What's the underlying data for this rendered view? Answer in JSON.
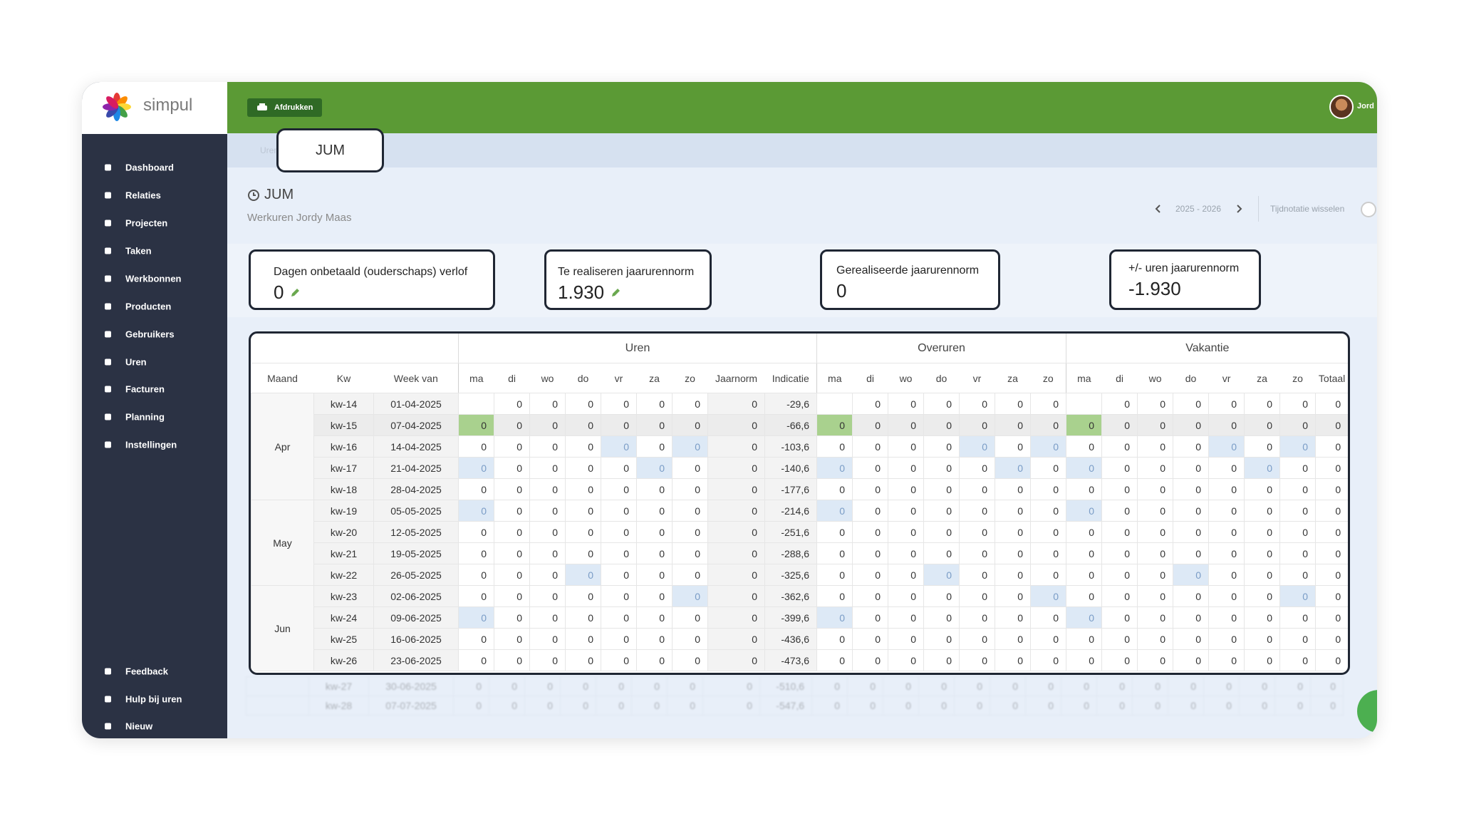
{
  "sidebar": {
    "brand": "simpul",
    "menu": [
      "Dashboard",
      "Relaties",
      "Projecten",
      "Taken",
      "Werkbonnen",
      "Producten",
      "Gebruikers",
      "Uren",
      "Facturen",
      "Planning",
      "Instellingen"
    ],
    "footer_menu": [
      "Feedback",
      "Hulp bij uren",
      "Nieuw"
    ]
  },
  "topbar": {
    "print_button": "Afdrukken",
    "user": "Jord"
  },
  "breadcrumb": {
    "crumb": "Uren",
    "highlight": "JUM"
  },
  "page": {
    "title": "JUM",
    "subtitle": "Werkuren Jordy Maas",
    "period": "2025 - 2026",
    "toggle": "Tijdnotatie wisselen"
  },
  "stats": [
    {
      "label": "Dagen onbetaald (ouderschaps) verlof",
      "value": 0
    },
    {
      "label": "Te realiseren jaarurennorm",
      "value": "1.930"
    },
    {
      "label": "Gerealiseerde jaarurennorm",
      "value": 0
    },
    {
      "label": "+/- uren jaarurennorm",
      "value": "-1.930"
    }
  ],
  "table": {
    "groups": [
      "Uren",
      "Overuren",
      "Vakantie"
    ],
    "columns": {
      "maand": "Maand",
      "kw": "Kw",
      "week": "Week van",
      "days": [
        "ma",
        "di",
        "wo",
        "do",
        "vr",
        "za",
        "zo"
      ],
      "jaarnorm": "Jaarnorm",
      "indicatie": "Indicatie",
      "totaal": "Totaal"
    },
    "months": [
      {
        "name": "Apr",
        "weeks": [
          {
            "kw": "kw-14",
            "week": "01-04-2025",
            "uren": [
              null,
              0,
              0,
              0,
              0,
              0,
              0
            ],
            "jaarnorm": 0,
            "indicatie": "-29,6",
            "overuren": [
              null,
              0,
              0,
              0,
              0,
              0,
              0
            ],
            "vakantie": [
              null,
              0,
              0,
              0,
              0,
              0,
              0
            ],
            "totaal": 0
          },
          {
            "kw": "kw-15",
            "week": "07-04-2025",
            "uren": [
              0,
              0,
              0,
              0,
              0,
              0,
              0
            ],
            "jaarnorm": 0,
            "indicatie": "-66,6",
            "overuren": [
              0,
              0,
              0,
              0,
              0,
              0,
              0
            ],
            "vakantie": [
              0,
              0,
              0,
              0,
              0,
              0,
              0
            ],
            "totaal": 0
          },
          {
            "kw": "kw-16",
            "week": "14-04-2025",
            "uren": [
              0,
              0,
              0,
              0,
              0,
              0,
              0
            ],
            "jaarnorm": 0,
            "indicatie": "-103,6",
            "overuren": [
              0,
              0,
              0,
              0,
              0,
              0,
              0
            ],
            "vakantie": [
              0,
              0,
              0,
              0,
              0,
              0,
              0
            ],
            "totaal": 0
          },
          {
            "kw": "kw-17",
            "week": "21-04-2025",
            "uren": [
              0,
              0,
              0,
              0,
              0,
              0,
              0
            ],
            "jaarnorm": 0,
            "indicatie": "-140,6",
            "overuren": [
              0,
              0,
              0,
              0,
              0,
              0,
              0
            ],
            "vakantie": [
              0,
              0,
              0,
              0,
              0,
              0,
              0
            ],
            "totaal": 0
          },
          {
            "kw": "kw-18",
            "week": "28-04-2025",
            "uren": [
              0,
              0,
              0,
              0,
              0,
              0,
              0
            ],
            "jaarnorm": 0,
            "indicatie": "-177,6",
            "overuren": [
              0,
              0,
              0,
              0,
              0,
              0,
              0
            ],
            "vakantie": [
              0,
              0,
              0,
              0,
              0,
              0,
              0
            ],
            "totaal": 0
          }
        ]
      },
      {
        "name": "May",
        "weeks": [
          {
            "kw": "kw-19",
            "week": "05-05-2025",
            "uren": [
              0,
              0,
              0,
              0,
              0,
              0,
              0
            ],
            "jaarnorm": 0,
            "indicatie": "-214,6",
            "overuren": [
              0,
              0,
              0,
              0,
              0,
              0,
              0
            ],
            "vakantie": [
              0,
              0,
              0,
              0,
              0,
              0,
              0
            ],
            "totaal": 0
          },
          {
            "kw": "kw-20",
            "week": "12-05-2025",
            "uren": [
              0,
              0,
              0,
              0,
              0,
              0,
              0
            ],
            "jaarnorm": 0,
            "indicatie": "-251,6",
            "overuren": [
              0,
              0,
              0,
              0,
              0,
              0,
              0
            ],
            "vakantie": [
              0,
              0,
              0,
              0,
              0,
              0,
              0
            ],
            "totaal": 0
          },
          {
            "kw": "kw-21",
            "week": "19-05-2025",
            "uren": [
              0,
              0,
              0,
              0,
              0,
              0,
              0
            ],
            "jaarnorm": 0,
            "indicatie": "-288,6",
            "overuren": [
              0,
              0,
              0,
              0,
              0,
              0,
              0
            ],
            "vakantie": [
              0,
              0,
              0,
              0,
              0,
              0,
              0
            ],
            "totaal": 0
          },
          {
            "kw": "kw-22",
            "week": "26-05-2025",
            "uren": [
              0,
              0,
              0,
              0,
              0,
              0,
              0
            ],
            "jaarnorm": 0,
            "indicatie": "-325,6",
            "overuren": [
              0,
              0,
              0,
              0,
              0,
              0,
              0
            ],
            "vakantie": [
              0,
              0,
              0,
              0,
              0,
              0,
              0
            ],
            "totaal": 0
          }
        ]
      },
      {
        "name": "Jun",
        "weeks": [
          {
            "kw": "kw-23",
            "week": "02-06-2025",
            "uren": [
              0,
              0,
              0,
              0,
              0,
              0,
              0
            ],
            "jaarnorm": 0,
            "indicatie": "-362,6",
            "overuren": [
              0,
              0,
              0,
              0,
              0,
              0,
              0
            ],
            "vakantie": [
              0,
              0,
              0,
              0,
              0,
              0,
              0
            ],
            "totaal": 0
          },
          {
            "kw": "kw-24",
            "week": "09-06-2025",
            "uren": [
              0,
              0,
              0,
              0,
              0,
              0,
              0
            ],
            "jaarnorm": 0,
            "indicatie": "-399,6",
            "overuren": [
              0,
              0,
              0,
              0,
              0,
              0,
              0
            ],
            "vakantie": [
              0,
              0,
              0,
              0,
              0,
              0,
              0
            ],
            "totaal": 0
          },
          {
            "kw": "kw-25",
            "week": "16-06-2025",
            "uren": [
              0,
              0,
              0,
              0,
              0,
              0,
              0
            ],
            "jaarnorm": 0,
            "indicatie": "-436,6",
            "overuren": [
              0,
              0,
              0,
              0,
              0,
              0,
              0
            ],
            "vakantie": [
              0,
              0,
              0,
              0,
              0,
              0,
              0
            ],
            "totaal": 0
          },
          {
            "kw": "kw-26",
            "week": "23-06-2025",
            "uren": [
              0,
              0,
              0,
              0,
              0,
              0,
              0
            ],
            "jaarnorm": 0,
            "indicatie": "-473,6",
            "overuren": [
              0,
              0,
              0,
              0,
              0,
              0,
              0
            ],
            "vakantie": [
              0,
              0,
              0,
              0,
              0,
              0,
              0
            ],
            "totaal": 0
          }
        ]
      }
    ],
    "background_rows": [
      {
        "kw": "kw-27",
        "week": "30-06-2025",
        "uren": [
          0,
          0,
          0,
          0,
          0,
          0,
          0
        ],
        "jaarnorm": 0,
        "indicatie": "-510,6",
        "overuren": [
          0,
          0,
          0,
          0,
          0,
          0,
          0
        ],
        "vakantie": [
          0,
          0,
          0,
          0,
          0,
          0,
          0
        ],
        "totaal": 0
      },
      {
        "kw": "kw-28",
        "week": "07-07-2025",
        "uren": [
          0,
          0,
          0,
          0,
          0,
          0,
          0
        ],
        "jaarnorm": 0,
        "indicatie": "-547,6",
        "overuren": [
          0,
          0,
          0,
          0,
          0,
          0,
          0
        ],
        "vakantie": [
          0,
          0,
          0,
          0,
          0,
          0,
          0
        ],
        "totaal": 0
      }
    ]
  }
}
